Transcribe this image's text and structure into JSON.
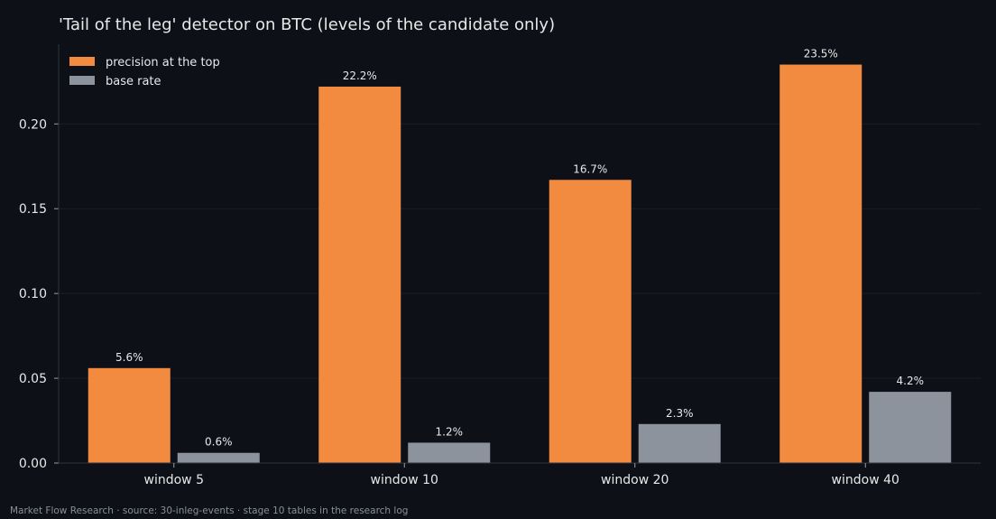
{
  "chart_data": {
    "type": "bar",
    "title": "'Tail of the leg' detector on BTC (levels of the candidate only)",
    "xlabel": "",
    "ylabel": "",
    "categories": [
      "window 5",
      "window 10",
      "window 20",
      "window 40"
    ],
    "series": [
      {
        "name": "precision at the top",
        "color": "#f28a40",
        "values": [
          0.056,
          0.222,
          0.167,
          0.235
        ],
        "labels": [
          "5.6%",
          "22.2%",
          "16.7%",
          "23.5%"
        ]
      },
      {
        "name": "base rate",
        "color": "#8d939d",
        "values": [
          0.006,
          0.012,
          0.023,
          0.042
        ],
        "labels": [
          "0.6%",
          "1.2%",
          "2.3%",
          "4.2%"
        ]
      }
    ],
    "ylim": [
      0,
      0.247
    ],
    "yticks": [
      0.0,
      0.05,
      0.1,
      0.15,
      0.2
    ],
    "ytick_labels": [
      "0.00",
      "0.05",
      "0.10",
      "0.15",
      "0.20"
    ],
    "grid": true,
    "legend_position": "top-left"
  },
  "footer": "Market Flow Research · source: 30-inleg-events · stage 10 tables in the research log"
}
